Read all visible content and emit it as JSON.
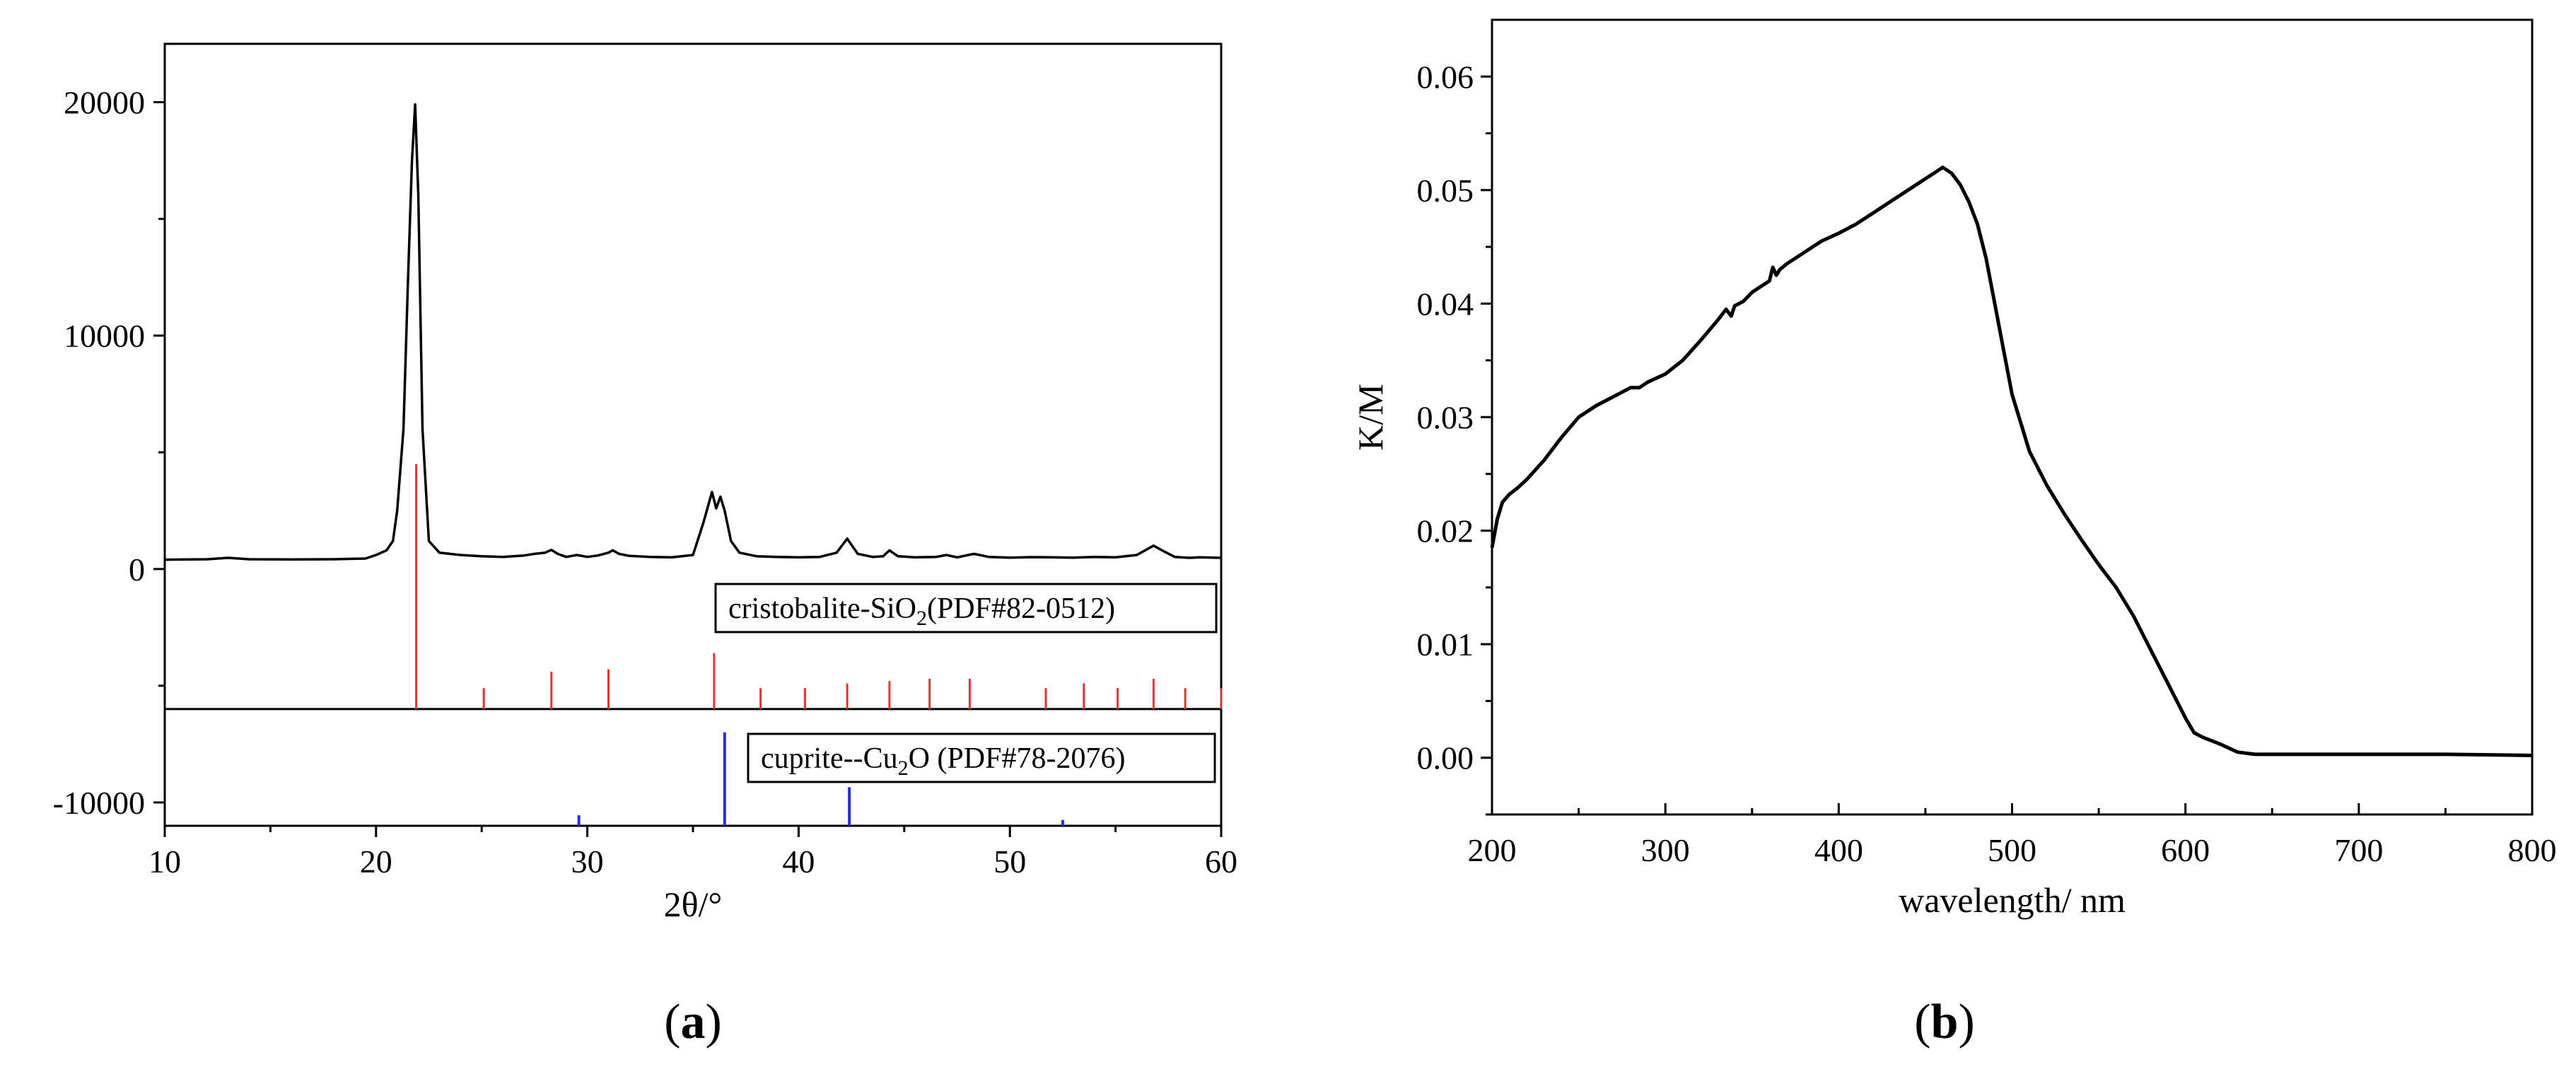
{
  "chart_data": [
    {
      "type": "line",
      "panel": "a",
      "caption": {
        "open": "(",
        "letter": "a",
        "close": ")"
      },
      "xlabel": "2θ/°",
      "ylabel": "",
      "xlim": [
        10,
        60
      ],
      "ylim": [
        -11000,
        22500
      ],
      "x_ticks": [
        10,
        20,
        30,
        40,
        50,
        60
      ],
      "y_ticks": [
        -10000,
        0,
        10000,
        20000
      ],
      "grid": false,
      "series": [
        {
          "color": "#000000",
          "x": [
            10,
            12,
            13,
            14,
            16,
            18,
            19.5,
            20,
            20.5,
            20.8,
            21,
            21.3,
            21.5,
            21.7,
            21.85,
            22,
            22.2,
            22.5,
            23,
            24,
            25,
            26,
            27,
            27.5,
            28,
            28.3,
            28.6,
            29,
            29.5,
            30,
            30.5,
            31,
            31.2,
            31.5,
            32,
            33,
            34,
            35,
            35.5,
            35.9,
            36.1,
            36.3,
            36.5,
            36.8,
            37.2,
            38,
            39,
            40,
            41,
            41.8,
            42.3,
            42.8,
            43.5,
            44,
            44.3,
            44.7,
            45.5,
            46.5,
            47,
            47.5,
            48.3,
            49,
            50,
            51,
            52,
            53,
            54,
            55,
            56,
            56.5,
            56.8,
            57.2,
            57.8,
            58.5,
            59,
            60
          ],
          "y": [
            400,
            420,
            480,
            420,
            410,
            420,
            450,
            600,
            800,
            1200,
            2500,
            6000,
            12000,
            17500,
            19900,
            16000,
            6000,
            1200,
            700,
            600,
            550,
            520,
            580,
            650,
            700,
            820,
            650,
            520,
            600,
            520,
            580,
            700,
            800,
            650,
            560,
            520,
            500,
            600,
            2000,
            3300,
            2600,
            3100,
            2500,
            1200,
            700,
            550,
            520,
            500,
            520,
            700,
            1300,
            650,
            520,
            550,
            800,
            550,
            500,
            520,
            600,
            500,
            650,
            520,
            490,
            510,
            500,
            490,
            520,
            500,
            600,
            850,
            1000,
            800,
            520,
            480,
            500,
            480
          ]
        }
      ],
      "references": [
        {
          "label": "cristobalite-SiO",
          "label_subscript": "2",
          "label_suffix": "(PDF#82-0512)",
          "color": "#e03535",
          "baseline": -6000,
          "peaks": [
            {
              "x": 21.9,
              "top": 4500
            },
            {
              "x": 25.1,
              "top": -5100
            },
            {
              "x": 28.3,
              "top": -4400
            },
            {
              "x": 31.0,
              "top": -4300
            },
            {
              "x": 36.0,
              "top": -3600
            },
            {
              "x": 38.2,
              "top": -5100
            },
            {
              "x": 40.3,
              "top": -5100
            },
            {
              "x": 42.3,
              "top": -4900
            },
            {
              "x": 44.3,
              "top": -4800
            },
            {
              "x": 46.2,
              "top": -4700
            },
            {
              "x": 48.1,
              "top": -4700
            },
            {
              "x": 51.7,
              "top": -5100
            },
            {
              "x": 53.5,
              "top": -4900
            },
            {
              "x": 55.1,
              "top": -5100
            },
            {
              "x": 56.8,
              "top": -4700
            },
            {
              "x": 58.3,
              "top": -5100
            },
            {
              "x": 60.0,
              "top": -5100
            }
          ]
        },
        {
          "label": "cuprite--Cu",
          "label_subscript": "2",
          "label_suffix": "O (PDF#78-2076)",
          "color": "#2a2ae0",
          "baseline": -11000,
          "peaks": [
            {
              "x": 29.6,
              "top": -10550
            },
            {
              "x": 36.5,
              "top": -7000
            },
            {
              "x": 42.4,
              "top": -9350
            },
            {
              "x": 52.5,
              "top": -10750
            }
          ]
        }
      ]
    },
    {
      "type": "line",
      "panel": "b",
      "caption": {
        "open": "(",
        "letter": "b",
        "close": ")"
      },
      "xlabel": "wavelength/ nm",
      "ylabel": "K/M",
      "xlim": [
        200,
        800
      ],
      "ylim": [
        -0.005,
        0.065
      ],
      "x_ticks": [
        200,
        300,
        400,
        500,
        600,
        700,
        800
      ],
      "y_ticks": [
        0.0,
        0.01,
        0.02,
        0.03,
        0.04,
        0.05,
        0.06
      ],
      "y_tick_labels": [
        "0.00",
        "0.01",
        "0.02",
        "0.03",
        "0.04",
        "0.05",
        "0.06"
      ],
      "grid": false,
      "series": [
        {
          "color": "#000000",
          "x": [
            200,
            203,
            206,
            210,
            215,
            220,
            230,
            240,
            250,
            260,
            270,
            275,
            280,
            285,
            290,
            300,
            310,
            320,
            330,
            335,
            338,
            340,
            345,
            350,
            355,
            360,
            362,
            364,
            366,
            370,
            380,
            390,
            400,
            410,
            420,
            430,
            440,
            450,
            455,
            460,
            465,
            470,
            475,
            480,
            485,
            490,
            495,
            500,
            510,
            520,
            530,
            540,
            550,
            560,
            570,
            580,
            590,
            595,
            600,
            605,
            610,
            620,
            630,
            640,
            650,
            700,
            750,
            800
          ],
          "y": [
            0.0185,
            0.021,
            0.0225,
            0.0232,
            0.0238,
            0.0245,
            0.0262,
            0.0282,
            0.03,
            0.031,
            0.0318,
            0.0322,
            0.0326,
            0.0326,
            0.0331,
            0.0338,
            0.035,
            0.0367,
            0.0385,
            0.0395,
            0.0389,
            0.0398,
            0.0402,
            0.041,
            0.0415,
            0.042,
            0.0432,
            0.0425,
            0.043,
            0.0435,
            0.0445,
            0.0455,
            0.0462,
            0.047,
            0.048,
            0.049,
            0.05,
            0.051,
            0.0515,
            0.052,
            0.0515,
            0.0505,
            0.049,
            0.047,
            0.044,
            0.04,
            0.036,
            0.032,
            0.027,
            0.024,
            0.0215,
            0.0192,
            0.017,
            0.015,
            0.0125,
            0.0095,
            0.0065,
            0.005,
            0.0035,
            0.0022,
            0.0018,
            0.0012,
            0.0005,
            0.0003,
            0.0003,
            0.0003,
            0.0003,
            0.0002
          ]
        }
      ]
    }
  ]
}
